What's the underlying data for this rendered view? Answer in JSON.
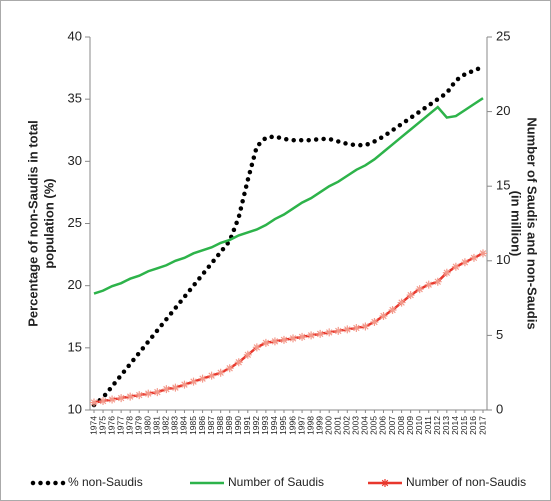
{
  "chart_data": {
    "type": "line",
    "categories": [
      "1974",
      "1975",
      "1976",
      "1977",
      "1978",
      "1979",
      "1980",
      "1981",
      "1982",
      "1983",
      "1984",
      "1985",
      "1986",
      "1987",
      "1988",
      "1989",
      "1990",
      "1991",
      "1992",
      "1993",
      "1994",
      "1995",
      "1996",
      "1997",
      "1998",
      "1999",
      "2000",
      "2001",
      "2002",
      "2003",
      "2004",
      "2005",
      "2006",
      "2007",
      "2008",
      "2009",
      "2010",
      "2011",
      "2012",
      "2013",
      "2014",
      "2015",
      "2016",
      "2017"
    ],
    "y_label": [
      "Percentage of non-Saudis in total",
      "population (%)"
    ],
    "y2_label": [
      "Number of Saudis and non-Saudis",
      "(in million)"
    ],
    "ylim": [
      10,
      40
    ],
    "yticks": [
      10,
      15,
      20,
      25,
      30,
      35,
      40
    ],
    "y2lim": [
      0,
      25
    ],
    "y2ticks": [
      0,
      5,
      10,
      15,
      20,
      25
    ],
    "legend": "bottom",
    "series": [
      {
        "name": "% non-Saudis",
        "color": "#000000",
        "style": "dotted",
        "values": [
          10.4,
          11.0,
          11.9,
          12.8,
          13.7,
          14.6,
          15.5,
          16.4,
          17.3,
          18.2,
          19.1,
          20.0,
          20.9,
          21.8,
          22.7,
          23.6,
          25.5,
          28.5,
          31.2,
          31.9,
          32.0,
          31.8,
          31.7,
          31.7,
          31.7,
          31.8,
          31.8,
          31.6,
          31.4,
          31.3,
          31.3,
          31.6,
          32.0,
          32.5,
          33.0,
          33.5,
          34.0,
          34.5,
          35.0,
          35.5,
          36.5,
          37.0,
          37.3,
          37.6
        ]
      },
      {
        "name": "Number of Saudis",
        "color": "#2db34a",
        "style": "solid",
        "axis": "y2",
        "values": [
          7.8,
          8.0,
          8.3,
          8.5,
          8.8,
          9.0,
          9.3,
          9.5,
          9.7,
          10.0,
          10.2,
          10.5,
          10.7,
          10.9,
          11.2,
          11.4,
          11.7,
          11.9,
          12.1,
          12.4,
          12.8,
          13.1,
          13.5,
          13.9,
          14.2,
          14.6,
          15.0,
          15.3,
          15.7,
          16.1,
          16.4,
          16.8,
          17.3,
          17.8,
          18.3,
          18.8,
          19.3,
          19.8,
          20.3,
          19.6,
          19.7,
          20.1,
          20.5,
          20.9
        ]
      },
      {
        "name": "Number of non-Saudis",
        "color": "#e8372c",
        "style": "solid",
        "marker": "asterisk",
        "axis": "y2",
        "values": [
          0.5,
          0.6,
          0.7,
          0.8,
          0.9,
          1.0,
          1.1,
          1.2,
          1.4,
          1.5,
          1.7,
          1.9,
          2.1,
          2.3,
          2.5,
          2.8,
          3.2,
          3.7,
          4.2,
          4.5,
          4.6,
          4.7,
          4.8,
          4.9,
          5.0,
          5.1,
          5.2,
          5.3,
          5.4,
          5.5,
          5.6,
          5.9,
          6.3,
          6.7,
          7.2,
          7.7,
          8.1,
          8.4,
          8.6,
          9.2,
          9.6,
          9.9,
          10.2,
          10.5
        ]
      }
    ]
  }
}
